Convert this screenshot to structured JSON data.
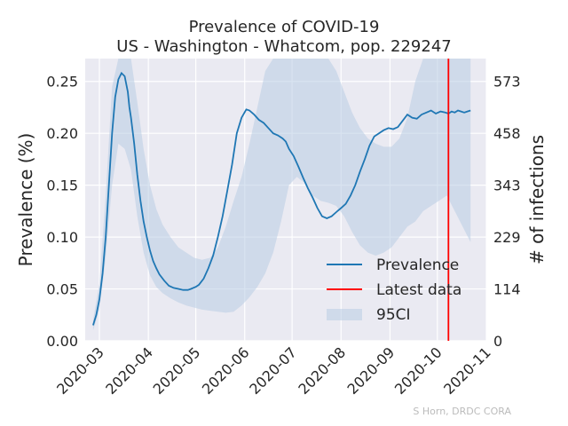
{
  "chart_data": {
    "type": "line",
    "title": "Prevalence of COVID-19",
    "subtitle": "US - Washington - Whatcom, pop. 229247",
    "xlabel": "",
    "ylabel": "Prevalence (%)",
    "ylabel_right": "# of infections",
    "x_ticks": [
      "2020-03",
      "2020-04",
      "2020-05",
      "2020-06",
      "2020-07",
      "2020-08",
      "2020-09",
      "2020-10",
      "2020-11"
    ],
    "y_ticks": [
      "0.00",
      "0.05",
      "0.10",
      "0.15",
      "0.20",
      "0.25"
    ],
    "y2_ticks": [
      "0",
      "114",
      "229",
      "343",
      "458",
      "573"
    ],
    "ylim": [
      0,
      0.272
    ],
    "xlim": [
      "2020-02-21",
      "2020-11-01"
    ],
    "grid": true,
    "legend_position": "lower-right",
    "legend": [
      "Prevalence",
      "Latest data",
      "95CI"
    ],
    "colors": {
      "prevalence": "#1f77b4",
      "latest": "#ff0000",
      "ci": "#b8cce4",
      "grid": "#ffffff",
      "plot_bg": "#eaeaf2"
    },
    "latest_data_date": "2020-10-08",
    "series": [
      {
        "name": "Prevalence",
        "x": [
          "2020-02-26",
          "2020-02-28",
          "2020-03-01",
          "2020-03-03",
          "2020-03-05",
          "2020-03-07",
          "2020-03-09",
          "2020-03-11",
          "2020-03-13",
          "2020-03-15",
          "2020-03-17",
          "2020-03-19",
          "2020-03-20",
          "2020-03-21",
          "2020-03-23",
          "2020-03-25",
          "2020-03-27",
          "2020-03-29",
          "2020-03-31",
          "2020-04-02",
          "2020-04-04",
          "2020-04-06",
          "2020-04-08",
          "2020-04-11",
          "2020-04-14",
          "2020-04-17",
          "2020-04-20",
          "2020-04-23",
          "2020-04-26",
          "2020-04-28",
          "2020-05-01",
          "2020-05-03",
          "2020-05-06",
          "2020-05-09",
          "2020-05-12",
          "2020-05-15",
          "2020-05-18",
          "2020-05-21",
          "2020-05-24",
          "2020-05-27",
          "2020-05-30",
          "2020-06-02",
          "2020-06-04",
          "2020-06-07",
          "2020-06-10",
          "2020-06-13",
          "2020-06-16",
          "2020-06-19",
          "2020-06-22",
          "2020-06-25",
          "2020-06-27",
          "2020-06-29",
          "2020-07-02",
          "2020-07-05",
          "2020-07-08",
          "2020-07-11",
          "2020-07-14",
          "2020-07-17",
          "2020-07-20",
          "2020-07-23",
          "2020-07-26",
          "2020-07-29",
          "2020-08-01",
          "2020-08-04",
          "2020-08-07",
          "2020-08-10",
          "2020-08-13",
          "2020-08-16",
          "2020-08-19",
          "2020-08-22",
          "2020-08-25",
          "2020-08-28",
          "2020-08-31",
          "2020-09-03",
          "2020-09-06",
          "2020-09-09",
          "2020-09-12",
          "2020-09-15",
          "2020-09-18",
          "2020-09-21",
          "2020-09-24",
          "2020-09-27",
          "2020-09-30",
          "2020-10-03",
          "2020-10-06",
          "2020-10-08",
          "2020-10-10",
          "2020-10-12",
          "2020-10-14",
          "2020-10-16",
          "2020-10-18",
          "2020-10-20",
          "2020-10-22"
        ],
        "values": [
          0.015,
          0.025,
          0.04,
          0.065,
          0.1,
          0.15,
          0.2,
          0.235,
          0.252,
          0.258,
          0.255,
          0.24,
          0.225,
          0.215,
          0.19,
          0.16,
          0.135,
          0.115,
          0.1,
          0.087,
          0.077,
          0.07,
          0.064,
          0.058,
          0.053,
          0.051,
          0.05,
          0.049,
          0.049,
          0.05,
          0.052,
          0.054,
          0.06,
          0.07,
          0.082,
          0.1,
          0.12,
          0.145,
          0.17,
          0.2,
          0.215,
          0.223,
          0.222,
          0.218,
          0.213,
          0.21,
          0.205,
          0.2,
          0.198,
          0.195,
          0.192,
          0.185,
          0.178,
          0.168,
          0.157,
          0.147,
          0.138,
          0.128,
          0.12,
          0.118,
          0.12,
          0.124,
          0.128,
          0.132,
          0.14,
          0.15,
          0.163,
          0.175,
          0.188,
          0.197,
          0.2,
          0.203,
          0.205,
          0.204,
          0.206,
          0.212,
          0.218,
          0.215,
          0.214,
          0.218,
          0.22,
          0.222,
          0.219,
          0.221,
          0.22,
          0.219,
          0.221,
          0.22,
          0.222,
          0.221,
          0.22,
          0.221,
          0.222
        ]
      },
      {
        "name": "95CI",
        "x": [
          "2020-02-26",
          "2020-03-01",
          "2020-03-05",
          "2020-03-09",
          "2020-03-13",
          "2020-03-17",
          "2020-03-21",
          "2020-03-25",
          "2020-03-29",
          "2020-04-02",
          "2020-04-06",
          "2020-04-10",
          "2020-04-15",
          "2020-04-20",
          "2020-04-25",
          "2020-04-30",
          "2020-05-05",
          "2020-05-10",
          "2020-05-15",
          "2020-05-20",
          "2020-05-25",
          "2020-05-30",
          "2020-06-04",
          "2020-06-09",
          "2020-06-14",
          "2020-06-19",
          "2020-06-24",
          "2020-06-29",
          "2020-07-04",
          "2020-07-09",
          "2020-07-14",
          "2020-07-19",
          "2020-07-24",
          "2020-07-29",
          "2020-08-03",
          "2020-08-08",
          "2020-08-13",
          "2020-08-18",
          "2020-08-23",
          "2020-08-28",
          "2020-09-02",
          "2020-09-07",
          "2020-09-12",
          "2020-09-17",
          "2020-09-22",
          "2020-09-27",
          "2020-10-02",
          "2020-10-07",
          "2020-10-12",
          "2020-10-17",
          "2020-10-22"
        ],
        "lower": [
          0.01,
          0.03,
          0.08,
          0.15,
          0.19,
          0.185,
          0.165,
          0.12,
          0.085,
          0.063,
          0.052,
          0.046,
          0.041,
          0.037,
          0.034,
          0.032,
          0.03,
          0.029,
          0.028,
          0.027,
          0.028,
          0.034,
          0.042,
          0.052,
          0.065,
          0.085,
          0.115,
          0.15,
          0.158,
          0.152,
          0.14,
          0.135,
          0.133,
          0.13,
          0.12,
          0.105,
          0.092,
          0.085,
          0.082,
          0.085,
          0.09,
          0.1,
          0.11,
          0.115,
          0.125,
          0.13,
          0.135,
          0.14,
          0.125,
          0.11,
          0.095
        ],
        "upper": [
          0.02,
          0.055,
          0.14,
          0.245,
          0.272,
          0.272,
          0.272,
          0.23,
          0.185,
          0.15,
          0.127,
          0.112,
          0.1,
          0.09,
          0.085,
          0.08,
          0.078,
          0.08,
          0.09,
          0.11,
          0.135,
          0.158,
          0.19,
          0.225,
          0.26,
          0.272,
          0.272,
          0.272,
          0.272,
          0.272,
          0.272,
          0.272,
          0.272,
          0.26,
          0.24,
          0.22,
          0.205,
          0.195,
          0.19,
          0.187,
          0.187,
          0.195,
          0.215,
          0.25,
          0.272,
          0.272,
          0.272,
          0.272,
          0.272,
          0.272,
          0.272
        ]
      }
    ]
  },
  "credit": "S Horn, DRDC CORA"
}
